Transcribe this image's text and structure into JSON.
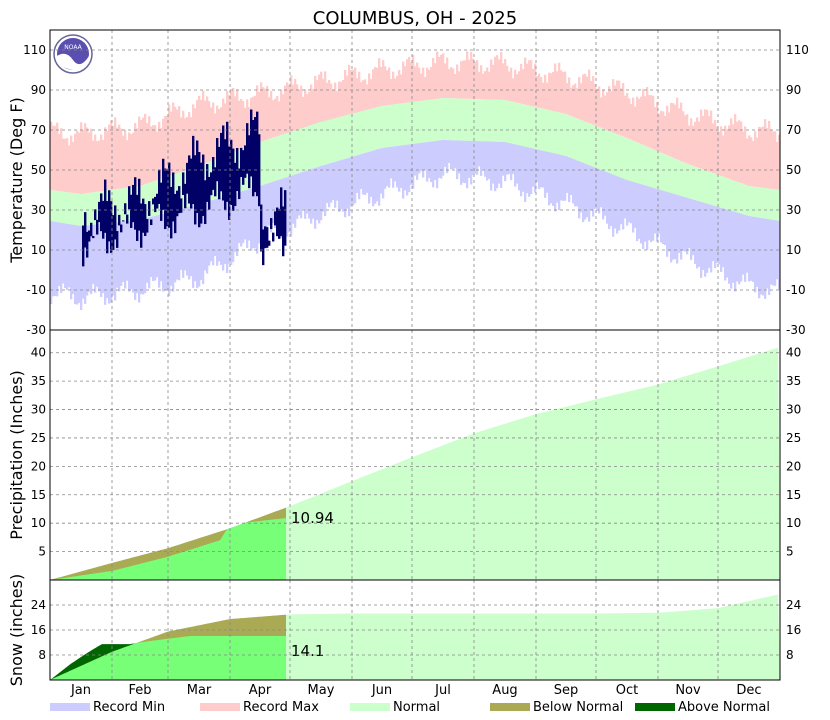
{
  "chart_data": {
    "type": "area",
    "title": "COLUMBUS, OH - 2025",
    "x_labels": [
      "Jan",
      "Feb",
      "Mar",
      "Apr",
      "May",
      "Jun",
      "Jul",
      "Aug",
      "Sep",
      "Oct",
      "Nov",
      "Dec"
    ],
    "panels": [
      {
        "name": "temperature",
        "ylabel": "Temperature (Deg F)",
        "ylim": [
          -30,
          120
        ],
        "yticks": [
          -30,
          -10,
          10,
          30,
          50,
          70,
          90,
          110
        ],
        "normal_high_monthly": [
          38,
          42,
          52,
          64,
          74,
          82,
          86,
          85,
          78,
          66,
          53,
          42
        ],
        "normal_low_monthly": [
          22,
          25,
          33,
          42,
          52,
          61,
          65,
          64,
          57,
          45,
          36,
          27
        ],
        "record_high_monthly": [
          68,
          72,
          83,
          88,
          94,
          100,
          104,
          103,
          97,
          89,
          78,
          70
        ],
        "record_low_monthly": [
          -14,
          -10,
          -4,
          15,
          28,
          38,
          48,
          44,
          33,
          20,
          5,
          -8
        ],
        "observed_through_day": 118,
        "observed_high_monthly": [
          28,
          35,
          55,
          70
        ],
        "observed_low_monthly": [
          12,
          22,
          30,
          42
        ]
      },
      {
        "name": "precipitation",
        "ylabel": "Precipitation (Inches)",
        "ylim": [
          0,
          44
        ],
        "yticks": [
          5,
          10,
          15,
          20,
          25,
          30,
          35,
          40
        ],
        "normal_cumulative_month_end": [
          3.0,
          5.6,
          9.1,
          13.0,
          17.4,
          21.6,
          25.8,
          29.2,
          31.8,
          34.4,
          37.6,
          41.0
        ],
        "observed_cumulative": [
          [
            0,
            0
          ],
          [
            31,
            1.6
          ],
          [
            59,
            4.1
          ],
          [
            85,
            7.0
          ],
          [
            90,
            9.8
          ],
          [
            118,
            10.9
          ]
        ],
        "ytd_label": "10.94"
      },
      {
        "name": "snow",
        "ylabel": "Snow (inches)",
        "ylim": [
          0,
          32
        ],
        "yticks": [
          8,
          16,
          24
        ],
        "normal_cumulative_month_end": [
          9.0,
          15.5,
          19.5,
          21.0,
          21.3,
          21.3,
          21.3,
          21.3,
          21.3,
          21.5,
          23.0,
          27.5
        ],
        "observed_cumulative": [
          [
            0,
            0
          ],
          [
            10,
            5
          ],
          [
            17,
            8
          ],
          [
            22,
            10
          ],
          [
            26,
            11.5
          ],
          [
            40,
            11.5
          ],
          [
            50,
            12.5
          ],
          [
            70,
            14.1
          ],
          [
            118,
            14.1
          ]
        ],
        "ytd_label": "14.1"
      }
    ],
    "legend": [
      {
        "label": "Record Min",
        "color": "#ccccff"
      },
      {
        "label": "Record Max",
        "color": "#ffcccc"
      },
      {
        "label": "Normal",
        "color": "#ccffcc"
      },
      {
        "label": "Below Normal",
        "color": "#aaaa55"
      },
      {
        "label": "Above Normal",
        "color": "#006600"
      }
    ],
    "colors": {
      "record_min": "#ccccff",
      "record_max": "#ffcccc",
      "normal": "#ccffcc",
      "observed_temp": "#000066",
      "observed_precip": "#77ff77",
      "below_normal": "#aaaa55",
      "above_normal": "#006600",
      "grid": "#888888"
    },
    "logo_text": "NOAA"
  }
}
